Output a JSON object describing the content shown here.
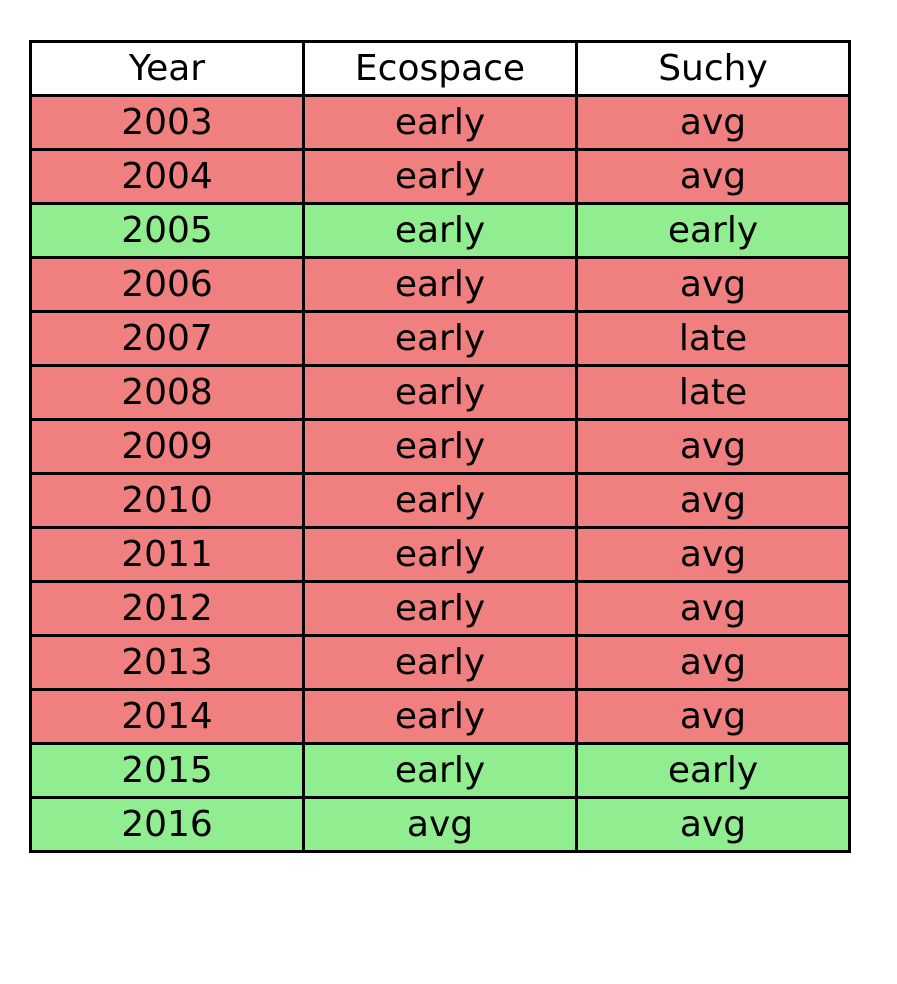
{
  "chart_data": {
    "type": "table",
    "columns": [
      "Year",
      "Ecospace",
      "Suchy"
    ],
    "rows": [
      {
        "cells": [
          "2003",
          "early",
          "avg"
        ],
        "status": "mismatch"
      },
      {
        "cells": [
          "2004",
          "early",
          "avg"
        ],
        "status": "mismatch"
      },
      {
        "cells": [
          "2005",
          "early",
          "early"
        ],
        "status": "match"
      },
      {
        "cells": [
          "2006",
          "early",
          "avg"
        ],
        "status": "mismatch"
      },
      {
        "cells": [
          "2007",
          "early",
          "late"
        ],
        "status": "mismatch"
      },
      {
        "cells": [
          "2008",
          "early",
          "late"
        ],
        "status": "mismatch"
      },
      {
        "cells": [
          "2009",
          "early",
          "avg"
        ],
        "status": "mismatch"
      },
      {
        "cells": [
          "2010",
          "early",
          "avg"
        ],
        "status": "mismatch"
      },
      {
        "cells": [
          "2011",
          "early",
          "avg"
        ],
        "status": "mismatch"
      },
      {
        "cells": [
          "2012",
          "early",
          "avg"
        ],
        "status": "mismatch"
      },
      {
        "cells": [
          "2013",
          "early",
          "avg"
        ],
        "status": "mismatch"
      },
      {
        "cells": [
          "2014",
          "early",
          "avg"
        ],
        "status": "mismatch"
      },
      {
        "cells": [
          "2015",
          "early",
          "early"
        ],
        "status": "match"
      },
      {
        "cells": [
          "2016",
          "avg",
          "avg"
        ],
        "status": "match"
      }
    ]
  },
  "colors": {
    "match": "#90ee90",
    "mismatch": "#f08080",
    "header": "#ffffff",
    "border": "#000000"
  }
}
